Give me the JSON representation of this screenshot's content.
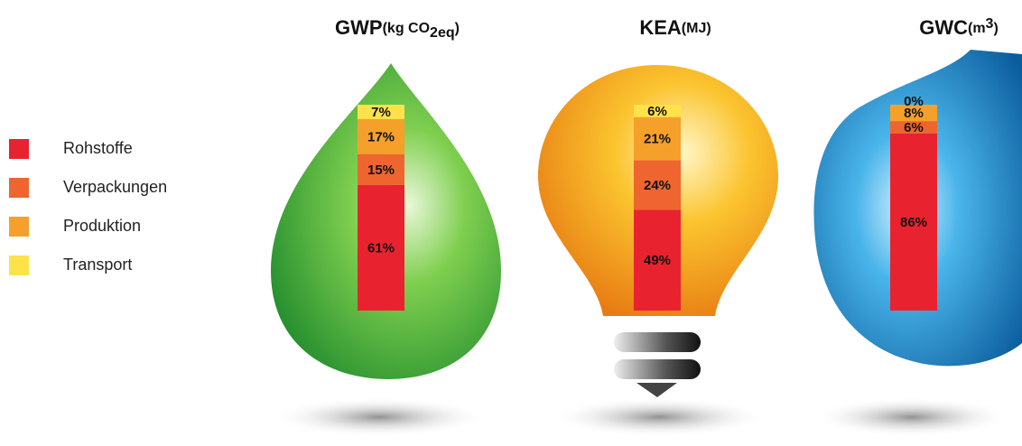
{
  "chart_data": {
    "type": "stacked_bar",
    "categories": [
      "GWP",
      "KEA",
      "GWC"
    ],
    "units": [
      {
        "base": "(kg CO",
        "sub": "2eq",
        "end": ")"
      },
      {
        "base": "(MJ)"
      },
      {
        "base": "(m",
        "sup": "3",
        "end": ")"
      }
    ],
    "ylim": [
      0,
      100
    ],
    "series": [
      {
        "name": "Rohstoffe",
        "color": "#e8232f",
        "values": [
          61,
          49,
          86
        ],
        "value_labels": [
          "61%",
          "49%",
          "86%"
        ]
      },
      {
        "name": "Verpackungen",
        "color": "#ee6530",
        "values": [
          15,
          24,
          6
        ],
        "value_labels": [
          "15%",
          "24%",
          "6%"
        ]
      },
      {
        "name": "Produktion",
        "color": "#f5a02a",
        "values": [
          17,
          21,
          8
        ],
        "value_labels": [
          "17%",
          "21%",
          "8%"
        ]
      },
      {
        "name": "Transport",
        "color": "#fde24a",
        "values": [
          7,
          6,
          0
        ],
        "value_labels": [
          "7%",
          "6%",
          "0%"
        ]
      }
    ]
  }
}
